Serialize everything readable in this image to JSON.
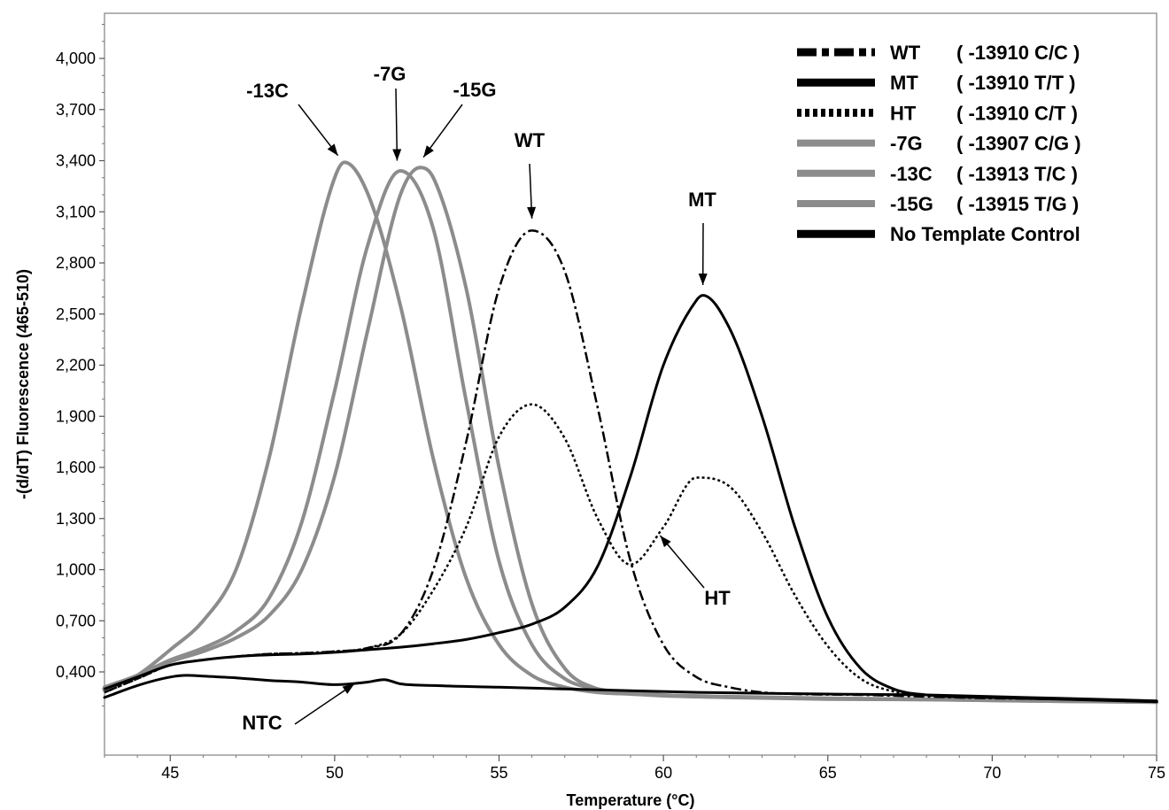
{
  "chart_data": {
    "type": "line",
    "xlabel": "Temperature (°C)",
    "ylabel": "-(d/dT) Fluorescence (465-510)",
    "xlim": [
      43,
      75
    ],
    "ylim": [
      0,
      4250
    ],
    "x_ticks": [
      45,
      50,
      55,
      60,
      65,
      70,
      75
    ],
    "x_tick_labels": [
      "45",
      "50",
      "55",
      "60",
      "65",
      "70",
      "75"
    ],
    "y_ticks": [
      400,
      700,
      1000,
      1300,
      1600,
      1900,
      2200,
      2500,
      2800,
      3100,
      3400,
      3700,
      4000
    ],
    "y_tick_labels": [
      "0,400",
      "0,700",
      "1,000",
      "1,300",
      "1,600",
      "1,900",
      "2,200",
      "2,500",
      "2,800",
      "3,100",
      "3,400",
      "3,700",
      "4,000"
    ],
    "grid": false,
    "legend_position": "top-right",
    "legend": [
      {
        "prefix": "WT",
        "detail": "( -13910 C/C )",
        "color": "#000000",
        "style": "dashdot"
      },
      {
        "prefix": "MT",
        "detail": "( -13910 T/T )",
        "color": "#000000",
        "style": "solid"
      },
      {
        "prefix": "HT",
        "detail": "( -13910 C/T )",
        "color": "#000000",
        "style": "dotted"
      },
      {
        "prefix": "-7G",
        "detail": "( -13907 C/G )",
        "color": "#8c8c8c",
        "style": "solid"
      },
      {
        "prefix": "-13C",
        "detail": "( -13913 T/C )",
        "color": "#8c8c8c",
        "style": "solid"
      },
      {
        "prefix": "-15G",
        "detail": "( -13915 T/G )",
        "color": "#8c8c8c",
        "style": "solid"
      },
      {
        "prefix": "No Template Control",
        "detail": "",
        "color": "#000000",
        "style": "solid"
      }
    ],
    "series": [
      {
        "name": "WT",
        "color": "#000000",
        "style": "dashdot",
        "peak_temp": 56.0,
        "peak_value": 2990,
        "x": [
          43,
          44,
          45,
          46,
          47,
          48,
          49,
          50,
          51,
          52,
          53,
          54,
          55,
          56,
          57,
          58,
          59,
          60,
          61,
          62,
          63,
          64,
          66,
          68,
          70,
          72,
          75
        ],
        "y": [
          280,
          360,
          440,
          470,
          490,
          505,
          510,
          520,
          540,
          620,
          1000,
          1750,
          2650,
          2990,
          2750,
          1950,
          1050,
          560,
          370,
          310,
          280,
          270,
          265,
          255,
          245,
          240,
          225
        ]
      },
      {
        "name": "MT",
        "color": "#000000",
        "style": "solid",
        "peak_temp": 61.2,
        "peak_value": 2610,
        "x": [
          43,
          44,
          45,
          46,
          47,
          48,
          49,
          50,
          51,
          52,
          53,
          54,
          55,
          56,
          57,
          58,
          59,
          60,
          61,
          61.2,
          62,
          63,
          64,
          65,
          66,
          67,
          68,
          70,
          72,
          75
        ],
        "y": [
          300,
          370,
          440,
          470,
          490,
          500,
          505,
          515,
          530,
          545,
          565,
          590,
          630,
          680,
          780,
          1020,
          1550,
          2200,
          2580,
          2610,
          2420,
          1900,
          1250,
          720,
          420,
          300,
          265,
          250,
          240,
          225
        ]
      },
      {
        "name": "HT",
        "color": "#000000",
        "style": "dotted",
        "peak_temp": 56.0,
        "peak_value": 1970,
        "x": [
          43,
          44,
          45,
          46,
          47,
          48,
          49,
          50,
          51,
          52,
          53,
          54,
          55,
          56,
          57,
          58,
          59,
          60,
          61,
          62,
          63,
          64,
          65,
          66,
          67,
          68,
          70,
          72,
          75
        ],
        "y": [
          280,
          360,
          440,
          470,
          490,
          505,
          510,
          520,
          540,
          620,
          880,
          1250,
          1780,
          1970,
          1770,
          1300,
          1030,
          1250,
          1540,
          1490,
          1220,
          850,
          550,
          360,
          285,
          265,
          250,
          240,
          225
        ]
      },
      {
        "name": "-7G",
        "color": "#8c8c8c",
        "style": "solid",
        "peak_temp": 52.0,
        "peak_value": 3340,
        "x": [
          43,
          44,
          45,
          46,
          47,
          48,
          49,
          50,
          51,
          52,
          53,
          54,
          55,
          56,
          57,
          58,
          59,
          60,
          62,
          65,
          68,
          70,
          72,
          75
        ],
        "y": [
          310,
          380,
          470,
          540,
          640,
          830,
          1280,
          2050,
          2900,
          3340,
          3000,
          1990,
          1050,
          560,
          360,
          300,
          280,
          265,
          255,
          245,
          240,
          235,
          230,
          225
        ]
      },
      {
        "name": "-13C",
        "color": "#8c8c8c",
        "style": "solid",
        "peak_temp": 50.3,
        "peak_value": 3390,
        "x": [
          43,
          44,
          45,
          46,
          47,
          48,
          49,
          50,
          50.3,
          51,
          52,
          53,
          54,
          55,
          56,
          57,
          58,
          59,
          60,
          62,
          65,
          68,
          70,
          72,
          75
        ],
        "y": [
          290,
          380,
          530,
          700,
          1000,
          1650,
          2550,
          3300,
          3390,
          3210,
          2550,
          1650,
          950,
          560,
          380,
          310,
          280,
          270,
          260,
          250,
          240,
          238,
          232,
          228,
          222
        ]
      },
      {
        "name": "-15G",
        "color": "#8c8c8c",
        "style": "solid",
        "peak_temp": 52.6,
        "peak_value": 3360,
        "x": [
          43,
          44,
          45,
          46,
          47,
          48,
          49,
          50,
          51,
          52,
          52.6,
          53,
          54,
          55,
          56,
          57,
          58,
          59,
          60,
          62,
          65,
          68,
          70,
          72,
          75
        ],
        "y": [
          305,
          375,
          460,
          520,
          600,
          730,
          1000,
          1550,
          2400,
          3200,
          3360,
          3300,
          2650,
          1600,
          800,
          420,
          300,
          275,
          262,
          252,
          243,
          238,
          233,
          228,
          223
        ]
      },
      {
        "name": "No Template Control",
        "color": "#000000",
        "style": "solid",
        "x": [
          43,
          44,
          45,
          45.5,
          46,
          47,
          48,
          49,
          50,
          51,
          51.5,
          52,
          53,
          55,
          57,
          59,
          61,
          63,
          65,
          68,
          70,
          72,
          75
        ],
        "y": [
          250,
          320,
          370,
          380,
          375,
          365,
          350,
          340,
          325,
          340,
          355,
          330,
          320,
          310,
          300,
          290,
          280,
          275,
          270,
          265,
          255,
          245,
          230
        ]
      }
    ],
    "annotations": [
      {
        "text": "-13C",
        "arrow_to": [
          50.1,
          3430
        ]
      },
      {
        "text": "-7G",
        "arrow_to": [
          51.9,
          3400
        ]
      },
      {
        "text": "-15G",
        "arrow_to": [
          52.7,
          3420
        ]
      },
      {
        "text": "WT",
        "arrow_to": [
          56.0,
          3060
        ]
      },
      {
        "text": "MT",
        "arrow_to": [
          61.2,
          2670
        ]
      },
      {
        "text": "HT",
        "arrow_to": [
          59.9,
          1200
        ]
      },
      {
        "text": "NTC",
        "arrow_to": [
          50.6,
          330
        ]
      }
    ]
  }
}
